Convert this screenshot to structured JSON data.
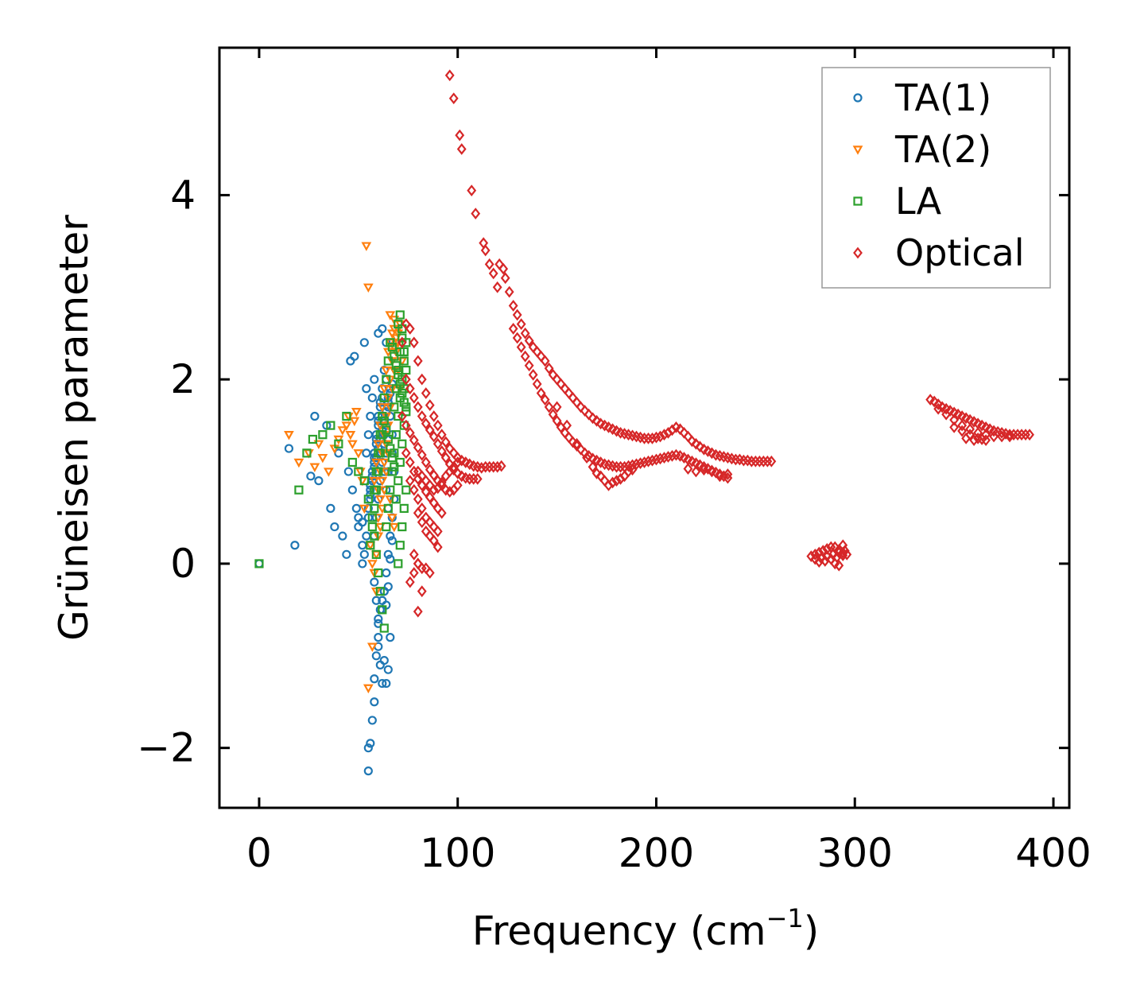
{
  "chart_data": {
    "type": "scatter",
    "xlabel": "Frequency (cm",
    "xlabel_sup": "−1",
    "xlabel_end": ")",
    "ylabel": "Grüneisen parameter",
    "xlim": [
      -20,
      408
    ],
    "ylim": [
      -2.65,
      5.6
    ],
    "xticks": [
      0,
      100,
      200,
      300,
      400
    ],
    "yticks": [
      -2,
      0,
      2,
      4
    ],
    "ytick_labels": [
      "−2",
      "0",
      "2",
      "4"
    ],
    "legend_position": "top-right",
    "series": [
      {
        "name": "TA(1)",
        "marker": "circle",
        "color": "#1f77b4",
        "x": [
          0,
          15,
          18,
          26,
          28,
          30,
          34,
          36,
          38,
          40,
          42,
          44,
          46,
          48,
          50,
          52,
          53,
          54,
          55,
          55,
          56,
          57,
          58,
          58,
          59,
          60,
          60,
          61,
          62,
          63,
          64,
          65,
          66,
          52,
          53,
          54,
          55,
          56,
          57,
          58,
          59,
          60,
          61,
          62,
          63,
          64,
          65,
          66,
          67,
          45,
          47,
          49,
          50,
          52,
          54,
          55,
          56,
          57,
          58,
          60,
          62,
          64,
          58,
          59,
          60,
          61,
          62,
          63,
          64,
          65,
          66,
          67,
          68,
          58,
          59,
          60,
          62,
          63,
          64,
          65,
          66,
          67,
          68,
          56,
          57,
          58,
          59,
          60,
          61,
          62,
          63,
          64,
          65,
          66,
          67,
          55,
          56,
          57,
          58,
          59,
          60,
          62,
          63,
          64,
          65,
          60,
          61,
          62,
          63,
          64,
          65,
          66,
          67,
          56,
          57,
          58,
          59,
          60,
          61,
          62,
          63,
          64,
          65
        ],
        "y": [
          0.0,
          1.25,
          0.2,
          0.95,
          1.6,
          0.9,
          1.5,
          0.6,
          0.4,
          1.2,
          0.3,
          0.1,
          2.2,
          2.25,
          0.5,
          0.45,
          2.4,
          1.9,
          -2.25,
          -2.0,
          -1.95,
          -1.7,
          -1.5,
          -1.25,
          -1.0,
          -0.8,
          -0.65,
          -0.5,
          -0.4,
          -0.3,
          -1.3,
          -1.15,
          -0.8,
          0.0,
          0.1,
          0.3,
          0.5,
          0.7,
          0.9,
          1.1,
          1.3,
          1.5,
          1.7,
          1.9,
          2.1,
          2.0,
          1.8,
          1.6,
          1.4,
          1.0,
          0.8,
          0.6,
          0.4,
          0.2,
          1.2,
          1.4,
          1.6,
          1.8,
          2.0,
          2.5,
          2.55,
          2.4,
          0.3,
          0.5,
          0.7,
          0.9,
          1.1,
          1.3,
          1.5,
          1.7,
          1.9,
          1.2,
          1.0,
          -0.2,
          -0.4,
          -0.6,
          -0.5,
          -0.3,
          -0.1,
          0.1,
          0.3,
          0.5,
          0.7,
          0.85,
          0.95,
          1.05,
          1.15,
          1.25,
          1.35,
          1.45,
          1.55,
          1.65,
          1.75,
          1.85,
          1.95,
          0.6,
          0.8,
          1.0,
          1.2,
          1.4,
          1.6,
          1.8,
          1.0,
          0.8,
          0.6,
          -0.9,
          -1.1,
          -1.3,
          -1.05,
          -0.45,
          -0.25,
          0.05,
          0.25,
          0.75,
          0.95,
          1.15,
          1.35,
          1.55,
          1.75,
          1.6,
          1.4,
          1.2,
          1.0
        ]
      },
      {
        "name": "TA(2)",
        "marker": "triangle-down",
        "color": "#ff7f0e",
        "x": [
          15,
          20,
          25,
          28,
          30,
          32,
          35,
          38,
          40,
          42,
          44,
          45,
          46,
          47,
          48,
          49,
          50,
          51,
          52,
          53,
          54,
          55,
          56,
          57,
          58,
          59,
          60,
          61,
          62,
          63,
          64,
          65,
          66,
          67,
          68,
          69,
          70,
          71,
          55,
          57,
          66,
          68,
          70,
          72,
          60,
          61,
          62,
          63,
          64,
          65,
          66,
          67,
          68,
          69,
          70,
          58,
          59,
          60,
          61,
          62,
          63,
          64,
          65,
          66,
          67,
          68,
          69,
          70,
          71,
          59,
          60,
          61,
          62,
          63,
          64,
          65,
          66,
          67,
          68
        ],
        "y": [
          1.4,
          1.1,
          1.2,
          1.05,
          1.3,
          1.15,
          1.0,
          1.25,
          1.35,
          1.45,
          1.5,
          1.6,
          1.4,
          1.3,
          1.55,
          1.65,
          1.2,
          1.0,
          0.9,
          0.6,
          3.45,
          3.0,
          0.2,
          0.0,
          -0.1,
          -0.3,
          0.5,
          0.7,
          0.9,
          1.1,
          1.3,
          1.5,
          1.7,
          1.9,
          2.1,
          2.3,
          2.5,
          2.6,
          -1.35,
          -0.9,
          2.7,
          2.65,
          2.4,
          2.2,
          0.8,
          1.0,
          1.2,
          1.4,
          1.6,
          1.8,
          2.0,
          2.2,
          2.35,
          2.45,
          2.55,
          0.9,
          1.1,
          1.3,
          1.5,
          1.7,
          1.9,
          2.1,
          2.3,
          2.4,
          2.5,
          2.55,
          2.3,
          2.1,
          1.9,
          0.1,
          0.3,
          0.4,
          0.6,
          0.8,
          1.0,
          1.2,
          0.7,
          0.5,
          0.4
        ]
      },
      {
        "name": "LA",
        "marker": "square",
        "color": "#2ca02c",
        "x": [
          0,
          20,
          24,
          27,
          32,
          36,
          40,
          44,
          47,
          50,
          53,
          55,
          57,
          58,
          59,
          60,
          61,
          62,
          63,
          64,
          65,
          66,
          67,
          68,
          69,
          70,
          71,
          72,
          73,
          74,
          70,
          71,
          72,
          73,
          74,
          70,
          71,
          72,
          73,
          74,
          69,
          70,
          71,
          72,
          73,
          68,
          69,
          70,
          71,
          72,
          73,
          74,
          58,
          59,
          60,
          61,
          62,
          63,
          64,
          65,
          66,
          67,
          68,
          69,
          70,
          71,
          72,
          73,
          74,
          56,
          57,
          58,
          59,
          60,
          61,
          62,
          63,
          64,
          65,
          66,
          67,
          68
        ],
        "y": [
          0.0,
          0.8,
          1.2,
          1.35,
          1.4,
          1.5,
          1.3,
          1.6,
          1.1,
          1.0,
          0.9,
          0.7,
          0.5,
          0.3,
          0.1,
          -0.1,
          -0.3,
          -0.5,
          -0.7,
          0.4,
          0.6,
          0.8,
          1.0,
          1.2,
          1.4,
          1.6,
          1.8,
          2.0,
          2.2,
          2.4,
          2.6,
          2.7,
          2.55,
          2.3,
          2.1,
          0.0,
          0.2,
          0.4,
          0.6,
          0.8,
          0.7,
          0.9,
          1.1,
          1.3,
          1.5,
          1.7,
          1.9,
          2.1,
          2.3,
          2.45,
          1.9,
          1.7,
          0.8,
          1.0,
          1.2,
          1.4,
          1.6,
          1.8,
          2.0,
          2.2,
          2.4,
          2.35,
          2.25,
          2.15,
          2.05,
          1.95,
          1.85,
          1.75,
          1.65,
          0.2,
          0.4,
          0.6,
          0.8,
          1.0,
          1.2,
          1.4,
          1.55,
          1.45,
          1.35,
          1.25,
          1.15,
          1.05
        ]
      },
      {
        "name": "Optical",
        "marker": "diamond",
        "color": "#d62728",
        "x": [
          96,
          98,
          101,
          102,
          107,
          109,
          113,
          114,
          116,
          118,
          120,
          121,
          123,
          124,
          126,
          128,
          130,
          132,
          134,
          136,
          138,
          140,
          142,
          144,
          146,
          148,
          150,
          152,
          154,
          156,
          158,
          160,
          162,
          164,
          166,
          168,
          170,
          172,
          174,
          176,
          178,
          180,
          182,
          184,
          186,
          188,
          190,
          192,
          194,
          196,
          198,
          200,
          202,
          204,
          206,
          208,
          210,
          212,
          214,
          216,
          218,
          220,
          222,
          224,
          226,
          228,
          230,
          232,
          234,
          236,
          238,
          240,
          242,
          244,
          246,
          248,
          250,
          252,
          254,
          256,
          258,
          128,
          130,
          132,
          134,
          136,
          138,
          140,
          142,
          144,
          146,
          148,
          150,
          152,
          154,
          156,
          158,
          160,
          162,
          164,
          166,
          168,
          170,
          172,
          174,
          176,
          178,
          180,
          182,
          184,
          186,
          188,
          190,
          192,
          194,
          196,
          198,
          200,
          202,
          204,
          206,
          208,
          210,
          212,
          214,
          216,
          218,
          220,
          222,
          224,
          226,
          228,
          230,
          232,
          234,
          236,
          150,
          155,
          160,
          165,
          168,
          170,
          172,
          174,
          176,
          178,
          180,
          182,
          184,
          186,
          188,
          232,
          236,
          228,
          224,
          220,
          216,
          72,
          74,
          76,
          78,
          80,
          82,
          84,
          86,
          88,
          90,
          92,
          94,
          96,
          98,
          100,
          102,
          104,
          106,
          108,
          110,
          112,
          114,
          116,
          118,
          120,
          122,
          74,
          76,
          78,
          80,
          82,
          84,
          86,
          88,
          90,
          92,
          94,
          96,
          98,
          100,
          102,
          104,
          106,
          108,
          110,
          72,
          74,
          76,
          78,
          80,
          82,
          84,
          86,
          88,
          90,
          92,
          94,
          96,
          98,
          100,
          74,
          76,
          78,
          80,
          82,
          84,
          86,
          88,
          90,
          92,
          80,
          82,
          84,
          86,
          88,
          90,
          92,
          94,
          96,
          98,
          100,
          76,
          78,
          80,
          82,
          84,
          86,
          88,
          90,
          80,
          82,
          84,
          86,
          88,
          90,
          78,
          80,
          82,
          84,
          86,
          76,
          78,
          80,
          82,
          80,
          278,
          280,
          282,
          284,
          286,
          288,
          290,
          292,
          294,
          296,
          280,
          283,
          286,
          289,
          292,
          295,
          282,
          285,
          288,
          291,
          294,
          290,
          292,
          294,
          338,
          340,
          342,
          344,
          346,
          348,
          350,
          352,
          354,
          356,
          358,
          360,
          362,
          364,
          366,
          368,
          370,
          372,
          374,
          376,
          378,
          380,
          382,
          384,
          386,
          388,
          342,
          346,
          350,
          354,
          358,
          362,
          366,
          370,
          374,
          378,
          350,
          354,
          358,
          362,
          366,
          356,
          360,
          364
        ],
        "y": [
          5.3,
          5.05,
          4.65,
          4.5,
          4.05,
          3.8,
          3.48,
          3.4,
          3.25,
          3.15,
          3.0,
          3.25,
          3.2,
          3.1,
          2.95,
          2.8,
          2.7,
          2.6,
          2.5,
          2.42,
          2.35,
          2.3,
          2.25,
          2.2,
          2.12,
          2.05,
          2.0,
          1.95,
          1.9,
          1.85,
          1.8,
          1.75,
          1.7,
          1.66,
          1.62,
          1.58,
          1.55,
          1.52,
          1.5,
          1.48,
          1.46,
          1.44,
          1.42,
          1.41,
          1.4,
          1.39,
          1.38,
          1.37,
          1.36,
          1.36,
          1.36,
          1.37,
          1.38,
          1.4,
          1.42,
          1.45,
          1.48,
          1.46,
          1.42,
          1.38,
          1.33,
          1.3,
          1.27,
          1.24,
          1.22,
          1.2,
          1.18,
          1.17,
          1.16,
          1.15,
          1.14,
          1.13,
          1.13,
          1.12,
          1.12,
          1.11,
          1.11,
          1.11,
          1.11,
          1.11,
          1.11,
          2.55,
          2.45,
          2.35,
          2.25,
          2.15,
          2.05,
          1.95,
          1.85,
          1.78,
          1.7,
          1.62,
          1.55,
          1.48,
          1.42,
          1.37,
          1.32,
          1.28,
          1.24,
          1.2,
          1.17,
          1.14,
          1.12,
          1.1,
          1.08,
          1.07,
          1.06,
          1.05,
          1.05,
          1.05,
          1.06,
          1.07,
          1.08,
          1.09,
          1.1,
          1.11,
          1.12,
          1.13,
          1.14,
          1.15,
          1.16,
          1.17,
          1.18,
          1.17,
          1.15,
          1.13,
          1.11,
          1.09,
          1.07,
          1.05,
          1.03,
          1.01,
          0.99,
          0.97,
          0.95,
          0.93,
          1.7,
          1.5,
          1.3,
          1.15,
          1.05,
          0.98,
          0.95,
          0.9,
          0.85,
          0.88,
          0.9,
          0.92,
          0.95,
          1.0,
          1.02,
          0.95,
          0.97,
          1.0,
          1.02,
          1.0,
          1.03,
          2.4,
          2.6,
          2.55,
          2.4,
          2.2,
          2.0,
          1.85,
          1.72,
          1.6,
          1.5,
          1.4,
          1.32,
          1.25,
          1.2,
          1.15,
          1.12,
          1.1,
          1.08,
          1.06,
          1.05,
          1.04,
          1.05,
          1.05,
          1.05,
          1.05,
          1.06,
          2.0,
          1.9,
          1.8,
          1.7,
          1.6,
          1.52,
          1.45,
          1.38,
          1.3,
          1.22,
          1.15,
          1.08,
          1.02,
          0.98,
          0.95,
          0.93,
          0.92,
          0.92,
          0.92,
          1.6,
          1.5,
          1.42,
          1.34,
          1.26,
          1.18,
          1.1,
          1.02,
          0.96,
          0.9,
          0.85,
          0.8,
          0.78,
          0.8,
          0.85,
          1.2,
          1.1,
          1.0,
          0.92,
          0.85,
          0.78,
          0.72,
          0.66,
          0.6,
          0.55,
          1.0,
          0.95,
          0.9,
          0.85,
          0.8,
          0.82,
          0.88,
          0.95,
          1.0,
          1.05,
          1.1,
          0.9,
          0.8,
          0.7,
          0.6,
          0.5,
          0.45,
          0.4,
          0.35,
          0.55,
          0.45,
          0.35,
          0.3,
          0.25,
          0.18,
          0.1,
          0.0,
          -0.05,
          -0.05,
          -0.1,
          -0.2,
          -0.1,
          0.0,
          -0.3,
          -0.52,
          0.08,
          0.1,
          0.12,
          0.14,
          0.16,
          0.18,
          0.18,
          0.15,
          0.12,
          0.1,
          0.05,
          0.06,
          0.08,
          0.1,
          0.12,
          0.14,
          0.02,
          0.03,
          0.05,
          0.07,
          0.09,
          0.0,
          -0.02,
          0.2,
          1.78,
          1.76,
          1.73,
          1.7,
          1.68,
          1.66,
          1.64,
          1.62,
          1.6,
          1.58,
          1.56,
          1.54,
          1.52,
          1.5,
          1.48,
          1.46,
          1.44,
          1.43,
          1.42,
          1.41,
          1.4,
          1.4,
          1.4,
          1.4,
          1.4,
          1.4,
          1.68,
          1.62,
          1.56,
          1.5,
          1.46,
          1.42,
          1.4,
          1.38,
          1.38,
          1.38,
          1.48,
          1.44,
          1.4,
          1.36,
          1.34,
          1.36,
          1.34,
          1.35
        ]
      }
    ]
  }
}
